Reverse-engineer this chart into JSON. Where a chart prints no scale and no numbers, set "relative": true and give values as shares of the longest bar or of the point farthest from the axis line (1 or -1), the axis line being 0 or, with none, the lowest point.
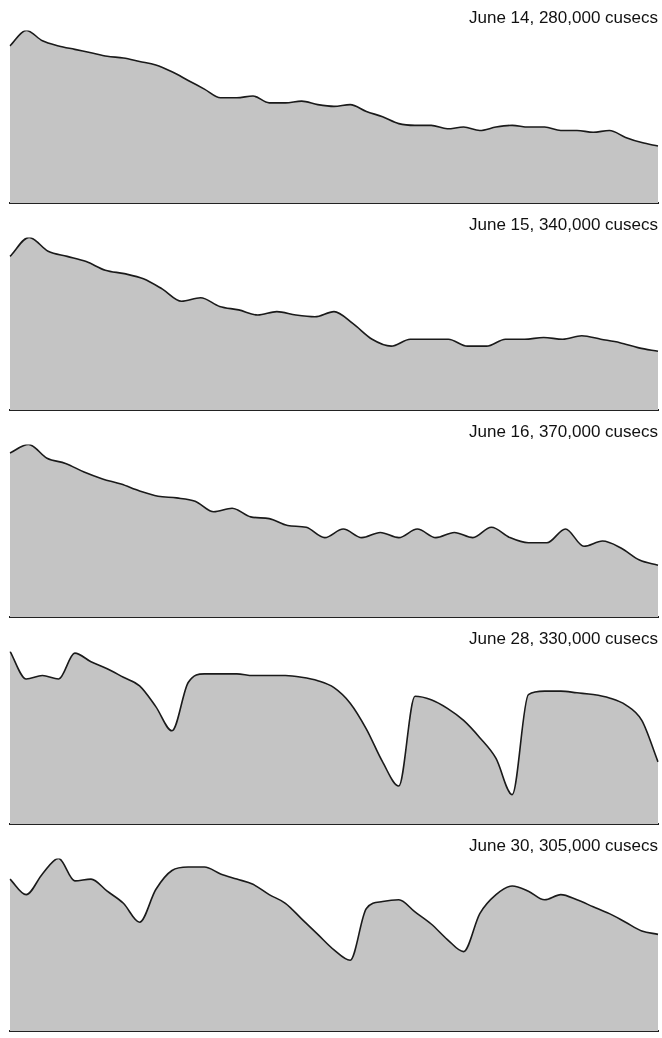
{
  "chart_data": [
    {
      "type": "area",
      "title": "June 14, 280,000 cusecs",
      "relative": true,
      "color": "#c4c4c4",
      "categories": [
        null,
        null,
        null,
        null,
        null,
        null,
        null,
        null,
        null,
        null,
        null,
        null,
        null,
        null,
        null,
        null,
        null,
        null,
        null,
        null,
        null,
        null,
        null,
        null,
        null,
        null,
        null,
        null,
        null,
        null,
        null,
        null,
        null,
        null,
        null,
        null,
        null,
        null,
        null,
        null,
        null
      ],
      "values": [
        0.91,
        1,
        0.94,
        0.91,
        0.89,
        0.87,
        0.85,
        0.84,
        0.82,
        0.8,
        0.76,
        0.71,
        0.66,
        0.61,
        0.61,
        0.62,
        0.58,
        0.58,
        0.59,
        0.57,
        0.56,
        0.57,
        0.53,
        0.5,
        0.46,
        0.45,
        0.45,
        0.43,
        0.44,
        0.42,
        0.44,
        0.45,
        0.44,
        0.44,
        0.42,
        0.42,
        0.41,
        0.42,
        0.38,
        0.35,
        0.33
      ]
    },
    {
      "type": "area",
      "title": "June 15, 340,000 cusecs",
      "relative": true,
      "color": "#c4c4c4",
      "categories": [
        null,
        null,
        null,
        null,
        null,
        null,
        null,
        null,
        null,
        null,
        null,
        null,
        null,
        null,
        null,
        null,
        null,
        null,
        null,
        null,
        null,
        null,
        null,
        null,
        null,
        null,
        null,
        null,
        null,
        null,
        null,
        null,
        null,
        null,
        null
      ],
      "values": [
        0.89,
        1,
        0.92,
        0.89,
        0.86,
        0.81,
        0.79,
        0.76,
        0.7,
        0.63,
        0.65,
        0.6,
        0.58,
        0.55,
        0.57,
        0.55,
        0.54,
        0.57,
        0.5,
        0.41,
        0.37,
        0.41,
        0.41,
        0.41,
        0.37,
        0.37,
        0.41,
        0.41,
        0.42,
        0.41,
        0.43,
        0.41,
        0.39,
        0.36,
        0.34
      ]
    },
    {
      "type": "area",
      "title": "June 16, 370,000 cusecs",
      "relative": true,
      "color": "#c4c4c4",
      "categories": [
        null,
        null,
        null,
        null,
        null,
        null,
        null,
        null,
        null,
        null,
        null,
        null,
        null,
        null,
        null,
        null,
        null,
        null,
        null,
        null,
        null,
        null,
        null,
        null,
        null,
        null,
        null,
        null,
        null,
        null,
        null,
        null,
        null,
        null,
        null,
        null
      ],
      "values": [
        0.95,
        1,
        0.92,
        0.89,
        0.84,
        0.8,
        0.77,
        0.73,
        0.7,
        0.69,
        0.67,
        0.61,
        0.63,
        0.58,
        0.57,
        0.53,
        0.52,
        0.46,
        0.51,
        0.46,
        0.49,
        0.46,
        0.51,
        0.46,
        0.49,
        0.46,
        0.52,
        0.46,
        0.43,
        0.43,
        0.51,
        0.41,
        0.44,
        0.4,
        0.33,
        0.3
      ]
    },
    {
      "type": "area",
      "title": "June 28, 330,000 cusecs",
      "relative": true,
      "color": "#c4c4c4",
      "categories": [
        null,
        null,
        null,
        null,
        null,
        null,
        null,
        null,
        null,
        null,
        null,
        null,
        null,
        null,
        null,
        null,
        null,
        null,
        null,
        null,
        null,
        null,
        null,
        null,
        null,
        null,
        null,
        null,
        null,
        null,
        null,
        null,
        null,
        null,
        null,
        null,
        null,
        null,
        null,
        null,
        null
      ],
      "values": [
        1,
        0.84,
        0.86,
        0.84,
        0.99,
        0.94,
        0.9,
        0.85,
        0.8,
        0.68,
        0.54,
        0.82,
        0.87,
        0.87,
        0.87,
        0.86,
        0.86,
        0.86,
        0.85,
        0.83,
        0.79,
        0.7,
        0.55,
        0.36,
        0.22,
        0.74,
        0.72,
        0.67,
        0.6,
        0.5,
        0.38,
        0.17,
        0.75,
        0.77,
        0.77,
        0.76,
        0.75,
        0.73,
        0.69,
        0.6,
        0.36
      ]
    },
    {
      "type": "area",
      "title": "June 30, 305,000 cusecs",
      "relative": true,
      "color": "#c4c4c4",
      "categories": [
        null,
        null,
        null,
        null,
        null,
        null,
        null,
        null,
        null,
        null,
        null,
        null,
        null,
        null,
        null,
        null,
        null,
        null,
        null,
        null,
        null,
        null,
        null,
        null,
        null,
        null,
        null,
        null,
        null,
        null,
        null,
        null,
        null,
        null,
        null,
        null,
        null,
        null,
        null,
        null,
        null
      ],
      "values": [
        0.88,
        0.79,
        0.91,
        1,
        0.87,
        0.88,
        0.81,
        0.74,
        0.63,
        0.82,
        0.93,
        0.95,
        0.95,
        0.91,
        0.88,
        0.85,
        0.79,
        0.74,
        0.65,
        0.56,
        0.47,
        0.41,
        0.71,
        0.75,
        0.76,
        0.69,
        0.62,
        0.53,
        0.46,
        0.68,
        0.79,
        0.84,
        0.81,
        0.76,
        0.79,
        0.76,
        0.72,
        0.68,
        0.63,
        0.58,
        0.56
      ]
    }
  ]
}
